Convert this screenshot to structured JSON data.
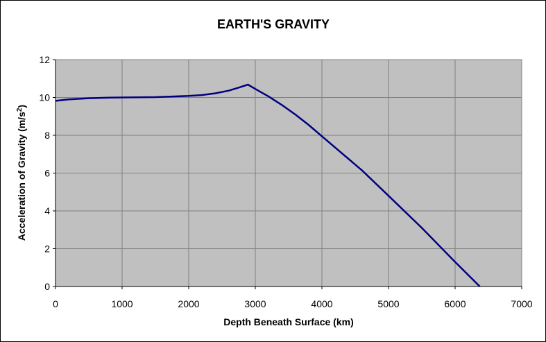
{
  "chart_data": {
    "type": "line",
    "title": "EARTH'S GRAVITY",
    "xlabel": "Depth Beneath Surface (km)",
    "ylabel_main": "Acceleration of Gravity (m/s",
    "ylabel_sup": "2",
    "ylabel_close": ")",
    "xlim": [
      0,
      7000
    ],
    "ylim": [
      0,
      12
    ],
    "xticks": [
      0,
      1000,
      2000,
      3000,
      4000,
      5000,
      6000,
      7000
    ],
    "yticks": [
      0,
      2,
      4,
      6,
      8,
      10,
      12
    ],
    "grid": true,
    "legend": "none",
    "plot_bg": "#c0c0c0",
    "grid_color": "#808080",
    "line_color": "#000080",
    "series": [
      {
        "x": [
          0,
          200,
          500,
          800,
          1000,
          1500,
          2000,
          2200,
          2400,
          2600,
          2750,
          2890,
          3000,
          3200,
          3400,
          3600,
          3800,
          4000,
          4300,
          4600,
          5000,
          5500,
          6000,
          6371
        ],
        "y": [
          9.82,
          9.9,
          9.96,
          9.99,
          10.0,
          10.02,
          10.08,
          10.13,
          10.22,
          10.36,
          10.52,
          10.68,
          10.45,
          10.05,
          9.6,
          9.1,
          8.55,
          7.95,
          7.05,
          6.15,
          4.8,
          3.1,
          1.3,
          0.0
        ]
      }
    ]
  }
}
